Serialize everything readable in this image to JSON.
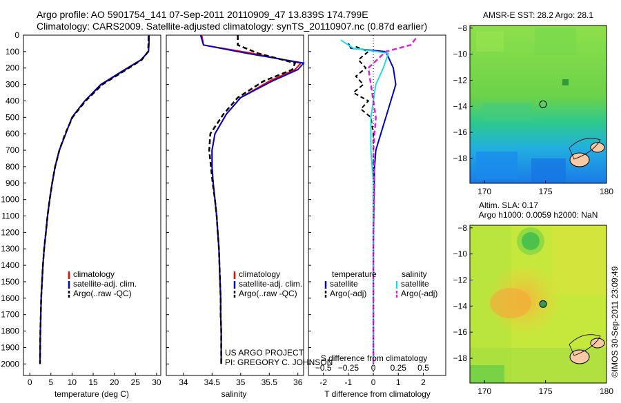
{
  "header": {
    "title_line1": "Argo profile: AO 5901754_141 07-Sep-2011 20110909_47 13.839S 174.799E",
    "title_line2": "Climatology: CARS2009. Satellite-adjusted climatology: synTS_20110907.nc (0.87d earlier)"
  },
  "colors": {
    "climatology": "#ff0000",
    "satellite": "#0000cc",
    "argo": "#000000",
    "salinity_satellite": "#22dddd",
    "salinity_argo": "#dd22dd"
  },
  "chart_data": [
    {
      "type": "line",
      "xlabel": "temperature (deg C)",
      "ylabel": "",
      "xlim": [
        -1.5,
        31
      ],
      "ylim": [
        2070,
        0
      ],
      "xticks": [
        0,
        5,
        10,
        15,
        20,
        25,
        30
      ],
      "yticks": [
        0,
        100,
        200,
        300,
        400,
        500,
        600,
        700,
        800,
        900,
        1000,
        1100,
        1200,
        1300,
        1400,
        1500,
        1600,
        1700,
        1800,
        1900,
        2000
      ],
      "legend": [
        "climatology",
        "satellite-adj. clim.",
        "Argo(..raw -QC)"
      ],
      "series": [
        {
          "name": "climatology",
          "x": [
            28.2,
            28.2,
            28.1,
            26.4,
            22,
            17,
            13,
            10,
            8.5,
            7,
            6,
            5.3,
            4.7,
            4.2,
            3.8,
            3.4,
            3.1,
            2.9,
            2.7,
            2.6,
            2.5,
            2.45,
            2.42
          ],
          "y": [
            0,
            50,
            100,
            150,
            220,
            300,
            400,
            500,
            600,
            700,
            800,
            900,
            1000,
            1100,
            1200,
            1300,
            1400,
            1500,
            1600,
            1700,
            1800,
            1900,
            2000
          ]
        },
        {
          "name": "satellite-adj. clim.",
          "x": [
            28.2,
            28.2,
            28.1,
            26.3,
            21.8,
            16.8,
            13,
            10,
            8.5,
            7,
            6,
            5.3,
            4.7,
            4.2,
            3.8,
            3.4,
            3.1,
            2.9,
            2.7,
            2.6,
            2.5,
            2.45,
            2.42
          ],
          "y": [
            0,
            50,
            100,
            150,
            220,
            300,
            400,
            500,
            600,
            700,
            800,
            900,
            1000,
            1100,
            1200,
            1300,
            1400,
            1500,
            1600,
            1700,
            1800,
            1900,
            2000
          ]
        },
        {
          "name": "Argo(..raw -QC)",
          "x": [
            28.1,
            28.1,
            28,
            26.5,
            22.2,
            17.2,
            13.2,
            10.1,
            8.4,
            7,
            6,
            5.3,
            4.7,
            4.2,
            3.8,
            3.4,
            3.1,
            2.9,
            2.7,
            2.6,
            2.5,
            2.45,
            2.42
          ],
          "y": [
            5,
            50,
            100,
            150,
            220,
            300,
            400,
            500,
            600,
            700,
            800,
            900,
            1000,
            1100,
            1200,
            1300,
            1400,
            1500,
            1600,
            1700,
            1800,
            1900,
            2000
          ]
        }
      ]
    },
    {
      "type": "line",
      "xlabel": "salinity",
      "xlim": [
        33.7,
        36.1
      ],
      "ylim": [
        2070,
        0
      ],
      "xticks": [
        34,
        34.5,
        35,
        35.5,
        36
      ],
      "legend": [
        "climatology",
        "satellite-adj. clim.",
        "Argo(..raw -QC)"
      ],
      "series": [
        {
          "name": "climatology",
          "x": [
            34.32,
            34.35,
            35.2,
            36.05,
            35.95,
            35.5,
            35.0,
            34.75,
            34.55,
            34.5,
            34.5,
            34.52,
            34.55,
            34.58,
            34.6,
            34.62,
            34.63,
            34.64,
            34.65,
            34.65,
            34.66,
            34.66
          ],
          "y": [
            0,
            60,
            110,
            170,
            210,
            280,
            380,
            480,
            600,
            700,
            800,
            900,
            1000,
            1100,
            1200,
            1300,
            1400,
            1500,
            1600,
            1700,
            1800,
            2000
          ]
        },
        {
          "name": "satellite-adj. clim.",
          "x": [
            34.3,
            34.35,
            35.1,
            36.1,
            36.0,
            35.55,
            35.0,
            34.75,
            34.55,
            34.5,
            34.5,
            34.52,
            34.55,
            34.58,
            34.6,
            34.62,
            34.63,
            34.64,
            34.65,
            34.65,
            34.66,
            34.66
          ],
          "y": [
            0,
            60,
            110,
            170,
            210,
            280,
            380,
            480,
            600,
            700,
            800,
            900,
            1000,
            1100,
            1200,
            1300,
            1400,
            1500,
            1600,
            1700,
            1800,
            2000
          ]
        },
        {
          "name": "Argo(..raw -QC)",
          "x": [
            34.95,
            34.95,
            35.3,
            35.95,
            35.9,
            35.4,
            34.95,
            34.7,
            34.47,
            34.45,
            34.48,
            34.51,
            34.55,
            34.58,
            34.6,
            34.62,
            34.63,
            34.64,
            34.65,
            34.65,
            34.66,
            34.66
          ],
          "y": [
            0,
            60,
            110,
            170,
            210,
            280,
            380,
            480,
            600,
            700,
            800,
            900,
            1000,
            1100,
            1200,
            1300,
            1400,
            1500,
            1600,
            1700,
            1800,
            2000
          ]
        }
      ]
    },
    {
      "type": "line",
      "xlabel": "T difference from climatology",
      "xlabel_top": "S difference from climatology",
      "xlim": [
        -2.6,
        2.9
      ],
      "ylim": [
        2070,
        0
      ],
      "xticks_T": [
        -2,
        -1,
        0,
        1,
        2
      ],
      "xticks_S": [
        -0.5,
        -0.25,
        0,
        0.25,
        0.5
      ],
      "legend_headers": [
        "temperature",
        "salinity"
      ],
      "legend": [
        "satellite",
        "Argo(-adj)",
        "satellite",
        "Argo(-adj)"
      ],
      "series": [
        {
          "name": "satellite",
          "group": "temperature",
          "x": [
            -1.0,
            -0.9,
            0.5,
            0.8,
            0.9,
            0.7,
            0.5,
            0.3,
            0.1,
            0.05,
            0.02,
            0.0,
            0.0,
            0.0,
            0.0
          ],
          "y": [
            50,
            80,
            100,
            200,
            300,
            400,
            500,
            600,
            700,
            800,
            1000,
            1300,
            1600,
            1800,
            2000
          ]
        },
        {
          "name": "Argo(-adj)",
          "group": "temperature",
          "x": [
            -0.7,
            -0.2,
            -0.6,
            -0.3,
            -0.7,
            -0.4,
            -0.8,
            -0.2,
            -0.5,
            -0.1,
            0.0,
            0.0,
            0.0
          ],
          "y": [
            70,
            100,
            150,
            200,
            250,
            300,
            350,
            400,
            450,
            500,
            600,
            800,
            2000
          ]
        },
        {
          "name": "satellite",
          "group": "salinity",
          "x": [
            -1.3,
            -0.8,
            0.6,
            0.4,
            0.1,
            -0.1,
            -0.1,
            0.0,
            0.0,
            0.0,
            0.0,
            0.0
          ],
          "y": [
            30,
            80,
            110,
            200,
            300,
            500,
            700,
            900,
            1200,
            1500,
            1800,
            2000
          ]
        },
        {
          "name": "Argo(-adj)",
          "group": "salinity",
          "x": [
            1.7,
            1.5,
            0.5,
            -0.2,
            -0.1,
            0.1,
            0.0,
            0.05,
            0.0,
            0.0,
            0.0,
            0.0
          ],
          "y": [
            20,
            60,
            100,
            200,
            300,
            500,
            700,
            900,
            1200,
            1500,
            1800,
            2000
          ]
        }
      ],
      "annotations": [
        "US ARGO PROJECT",
        "PI: GREGORY C. JOHNSON"
      ]
    },
    {
      "type": "heatmap",
      "title": "AMSR-E SST: 28.2 Argo: 28.1",
      "xticks": [
        170,
        175,
        180
      ],
      "yticks": [
        -8,
        -10,
        -12,
        -14,
        -16,
        -18
      ],
      "xlim": [
        168.8,
        180
      ],
      "ylim": [
        -19.9,
        -7.8
      ],
      "marker": {
        "lon": 174.8,
        "lat": -13.84
      }
    },
    {
      "type": "heatmap",
      "title_line1": "Altim. SLA: 0.17",
      "title_line2": "Argo h1000: 0.0059 h2000: NaN",
      "xticks": [
        170,
        175,
        180
      ],
      "yticks": [
        -8,
        -10,
        -12,
        -14,
        -16,
        -18
      ],
      "xlim": [
        168.8,
        180
      ],
      "ylim": [
        -19.9,
        -7.8
      ],
      "marker": {
        "lon": 174.8,
        "lat": -13.84
      }
    }
  ],
  "side_label": "©IMOS 30-Sep-2011 23:09:49"
}
